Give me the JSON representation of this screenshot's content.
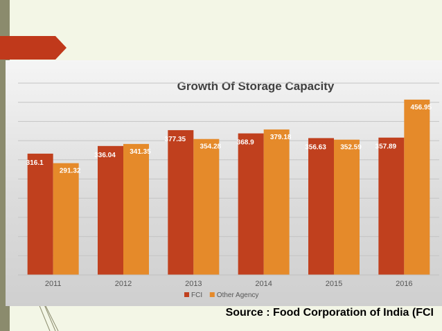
{
  "slide": {
    "source": "Source : Food Corporation of India (FCI",
    "colors": {
      "accent_tab": "#c0391b",
      "strip": "#8b8b6d",
      "background": "#f3f6e6"
    }
  },
  "chart_data": {
    "type": "bar",
    "title": "Growth Of Storage  Capacity",
    "xlabel": "",
    "ylabel": "",
    "categories": [
      "2011",
      "2012",
      "2013",
      "2014",
      "2015",
      "2016"
    ],
    "series": [
      {
        "name": "FCI",
        "color": "#c0401e",
        "values": [
          316.1,
          336.04,
          377.35,
          368.9,
          356.63,
          357.89
        ]
      },
      {
        "name": "Other Agency",
        "color": "#e58a2a",
        "values": [
          291.32,
          341.35,
          354.28,
          379.18,
          352.59,
          456.95
        ]
      }
    ],
    "ylim": [
      0,
      500
    ],
    "grid": true,
    "legend": "bottom"
  }
}
